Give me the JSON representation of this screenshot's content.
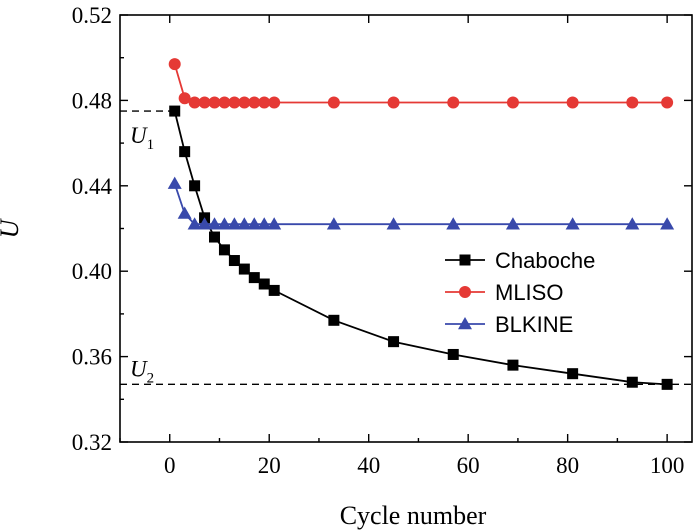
{
  "chart_data": {
    "type": "line",
    "title": "",
    "xlabel": "Cycle number",
    "ylabel": "U",
    "xlim": [
      -10,
      105
    ],
    "ylim": [
      0.32,
      0.52
    ],
    "xticks": [
      0,
      20,
      40,
      60,
      80,
      100
    ],
    "yticks": [
      0.32,
      0.36,
      0.4,
      0.44,
      0.48,
      0.52
    ],
    "xtick_labels": [
      "0",
      "20",
      "40",
      "60",
      "80",
      "100"
    ],
    "ytick_labels": [
      "0.32",
      "0.36",
      "0.40",
      "0.44",
      "0.48",
      "0.52"
    ],
    "grid": false,
    "legend_position": "center-right",
    "series": [
      {
        "name": "Chaboche",
        "color": "#000000",
        "marker": "square",
        "x": [
          1,
          3,
          5,
          7,
          9,
          11,
          13,
          15,
          17,
          19,
          21,
          33,
          45,
          57,
          69,
          81,
          93,
          100
        ],
        "y": [
          0.475,
          0.456,
          0.44,
          0.425,
          0.416,
          0.41,
          0.405,
          0.401,
          0.397,
          0.394,
          0.391,
          0.377,
          0.367,
          0.361,
          0.356,
          0.352,
          0.348,
          0.347
        ]
      },
      {
        "name": "MLISO",
        "color": "#e53935",
        "marker": "circle",
        "x": [
          1,
          3,
          5,
          7,
          9,
          11,
          13,
          15,
          17,
          19,
          21,
          33,
          45,
          57,
          69,
          81,
          93,
          100
        ],
        "y": [
          0.497,
          0.481,
          0.479,
          0.479,
          0.479,
          0.479,
          0.479,
          0.479,
          0.479,
          0.479,
          0.479,
          0.479,
          0.479,
          0.479,
          0.479,
          0.479,
          0.479,
          0.479
        ]
      },
      {
        "name": "BLKINE",
        "color": "#3949ab",
        "marker": "triangle",
        "x": [
          1,
          3,
          5,
          7,
          9,
          11,
          13,
          15,
          17,
          19,
          21,
          33,
          45,
          57,
          69,
          81,
          93,
          100
        ],
        "y": [
          0.441,
          0.427,
          0.422,
          0.422,
          0.422,
          0.422,
          0.422,
          0.422,
          0.422,
          0.422,
          0.422,
          0.422,
          0.422,
          0.422,
          0.422,
          0.422,
          0.422,
          0.422
        ]
      }
    ],
    "annotations": [
      {
        "label": "U",
        "subscript": "1",
        "y": 0.475
      },
      {
        "label": "U",
        "subscript": "2",
        "y": 0.347
      }
    ]
  }
}
